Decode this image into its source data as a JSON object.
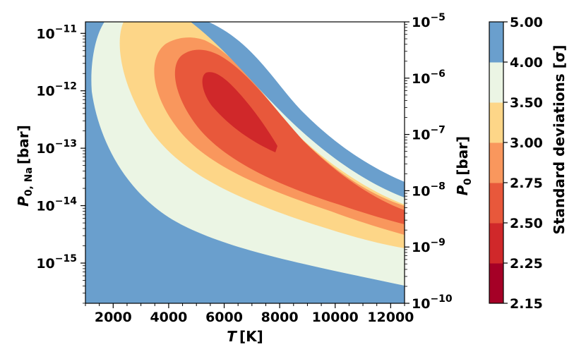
{
  "chart_data": {
    "type": "contour",
    "x": {
      "label_main": "T",
      "label_unit": "[K]",
      "range": [
        1000,
        12500
      ],
      "ticks": [
        "2000",
        "4000",
        "6000",
        "8000",
        "10000",
        "12000"
      ]
    },
    "y_left": {
      "label_main": "P",
      "label_sub": "0, Na",
      "label_unit": "[bar]",
      "scale": "log",
      "range_exp": [
        -15.7,
        -10.8
      ],
      "ticks": [
        {
          "base": "10",
          "exp": "−11"
        },
        {
          "base": "10",
          "exp": "−12"
        },
        {
          "base": "10",
          "exp": "−13"
        },
        {
          "base": "10",
          "exp": "−14"
        },
        {
          "base": "10",
          "exp": "−15"
        }
      ]
    },
    "y_right": {
      "label_main": "P",
      "label_sub": "0",
      "label_unit": "[bar]",
      "scale": "log",
      "range_exp": [
        -10,
        -5
      ],
      "ticks": [
        {
          "base": "10",
          "exp": "−5"
        },
        {
          "base": "10",
          "exp": "−6"
        },
        {
          "base": "10",
          "exp": "−7"
        },
        {
          "base": "10",
          "exp": "−8"
        },
        {
          "base": "10",
          "exp": "−9"
        },
        {
          "base": "10",
          "exp": "−10"
        }
      ]
    },
    "colorbar": {
      "label": "Standard deviations [σ]",
      "levels": [
        "2.15",
        "2.25",
        "2.50",
        "2.75",
        "3.00",
        "3.50",
        "4.00",
        "5.00"
      ],
      "colors": [
        "#a50026",
        "#d73027",
        "#f46d43",
        "#fdae61",
        "#fee090",
        "#e0f3f8",
        "#74add1"
      ]
    },
    "regions": [
      {
        "level_range": "4.00–5.00",
        "color": "#6a9fcd"
      },
      {
        "level_range": "3.50–4.00",
        "color": "#ebf5e4"
      },
      {
        "level_range": "3.00–3.50",
        "color": "#fdd688"
      },
      {
        "level_range": "2.75–3.00",
        "color": "#f9975d"
      },
      {
        "level_range": "2.50–2.75",
        "color": "#e8583b"
      },
      {
        "level_range": "2.25–2.50",
        "color": "#d0282a"
      }
    ]
  }
}
